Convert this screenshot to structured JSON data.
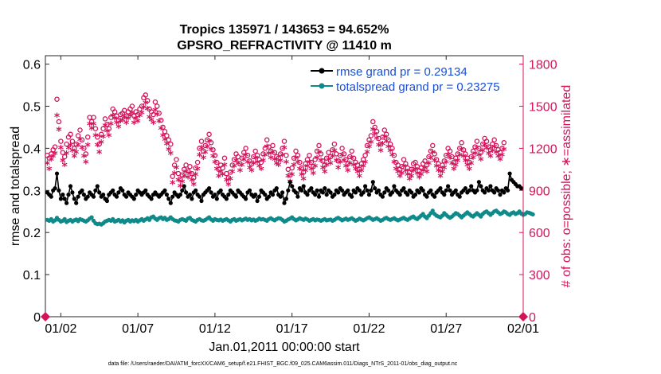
{
  "chart_data": {
    "type": "line",
    "title_line1": "Tropics 135971 / 143653 = 94.652%",
    "title_line2": "GPSRO_REFRACTIVITY @ 11410 m",
    "xlabel": "Jan.01,2011 00:00:00 start",
    "ylabel_left": "rmse and totalspread",
    "ylabel_right": "# of obs: o=possible; ∗=assimilated",
    "footer": "data file: /Users/raeder/DAI/ATM_forcXX/CAM6_setup/f.e21.FHIST_BGC.f09_025.CAM6assim.011/Diags_NTrS_2011-01/obs_diag_output.nc",
    "xlim": [
      0,
      31
    ],
    "ylim_left": [
      0,
      0.62
    ],
    "ylim_right": [
      0,
      1860
    ],
    "x_ticks": [
      {
        "value": 1,
        "label": "01/02"
      },
      {
        "value": 6,
        "label": "01/07"
      },
      {
        "value": 11,
        "label": "01/12"
      },
      {
        "value": 16,
        "label": "01/17"
      },
      {
        "value": 21,
        "label": "01/22"
      },
      {
        "value": 26,
        "label": "01/27"
      },
      {
        "value": 31,
        "label": "02/01"
      }
    ],
    "y_ticks_left": [
      {
        "value": 0,
        "label": "0"
      },
      {
        "value": 0.1,
        "label": "0.1"
      },
      {
        "value": 0.2,
        "label": "0.2"
      },
      {
        "value": 0.3,
        "label": "0.3"
      },
      {
        "value": 0.4,
        "label": "0.4"
      },
      {
        "value": 0.5,
        "label": "0.5"
      },
      {
        "value": 0.6,
        "label": "0.6"
      }
    ],
    "y_ticks_right": [
      {
        "value": 0,
        "label": "0"
      },
      {
        "value": 300,
        "label": "300"
      },
      {
        "value": 600,
        "label": "600"
      },
      {
        "value": 900,
        "label": "900"
      },
      {
        "value": 1200,
        "label": "1200"
      },
      {
        "value": 1500,
        "label": "1500"
      },
      {
        "value": 1800,
        "label": "1800"
      }
    ],
    "legend": {
      "placement": "top-right",
      "entries": [
        {
          "label": "rmse grand pr = 0.29134",
          "color": "#000000"
        },
        {
          "label": "totalspread grand pr = 0.23275",
          "color": "#0f8a8a"
        }
      ]
    },
    "series": [
      {
        "name": "rmse",
        "axis": "left",
        "color": "#000000",
        "x_start": 0.125,
        "x_step": 0.125,
        "values": [
          0.295,
          0.29,
          0.285,
          0.3,
          0.305,
          0.34,
          0.3,
          0.28,
          0.29,
          0.28,
          0.27,
          0.29,
          0.31,
          0.295,
          0.28,
          0.27,
          0.285,
          0.295,
          0.3,
          0.29,
          0.28,
          0.285,
          0.295,
          0.29,
          0.285,
          0.3,
          0.31,
          0.295,
          0.285,
          0.29,
          0.28,
          0.275,
          0.29,
          0.295,
          0.3,
          0.29,
          0.285,
          0.295,
          0.305,
          0.3,
          0.29,
          0.285,
          0.295,
          0.29,
          0.285,
          0.28,
          0.29,
          0.3,
          0.295,
          0.29,
          0.295,
          0.3,
          0.29,
          0.285,
          0.28,
          0.29,
          0.295,
          0.29,
          0.285,
          0.29,
          0.295,
          0.3,
          0.29,
          0.28,
          0.27,
          0.285,
          0.295,
          0.29,
          0.285,
          0.29,
          0.3,
          0.31,
          0.295,
          0.285,
          0.29,
          0.28,
          0.295,
          0.3,
          0.29,
          0.285,
          0.275,
          0.29,
          0.295,
          0.3,
          0.305,
          0.295,
          0.285,
          0.29,
          0.28,
          0.295,
          0.3,
          0.29,
          0.285,
          0.28,
          0.29,
          0.3,
          0.295,
          0.29,
          0.285,
          0.3,
          0.295,
          0.29,
          0.285,
          0.28,
          0.295,
          0.3,
          0.29,
          0.285,
          0.29,
          0.275,
          0.285,
          0.3,
          0.295,
          0.29,
          0.28,
          0.285,
          0.295,
          0.29,
          0.3,
          0.305,
          0.29,
          0.285,
          0.295,
          0.27,
          0.28,
          0.3,
          0.32,
          0.31,
          0.3,
          0.295,
          0.285,
          0.305,
          0.3,
          0.31,
          0.295,
          0.29,
          0.3,
          0.305,
          0.295,
          0.29,
          0.3,
          0.285,
          0.3,
          0.295,
          0.305,
          0.29,
          0.3,
          0.295,
          0.285,
          0.29,
          0.3,
          0.295,
          0.305,
          0.3,
          0.29,
          0.295,
          0.3,
          0.29,
          0.285,
          0.3,
          0.295,
          0.305,
          0.3,
          0.29,
          0.295,
          0.31,
          0.3,
          0.29,
          0.3,
          0.32,
          0.305,
          0.295,
          0.3,
          0.29,
          0.285,
          0.295,
          0.305,
          0.3,
          0.29,
          0.295,
          0.31,
          0.3,
          0.295,
          0.29,
          0.3,
          0.305,
          0.295,
          0.29,
          0.3,
          0.295,
          0.285,
          0.29,
          0.3,
          0.295,
          0.305,
          0.3,
          0.29,
          0.285,
          0.295,
          0.3,
          0.29,
          0.285,
          0.295,
          0.3,
          0.305,
          0.295,
          0.29,
          0.3,
          0.31,
          0.3,
          0.29,
          0.295,
          0.3,
          0.29,
          0.285,
          0.295,
          0.3,
          0.305,
          0.295,
          0.3,
          0.31,
          0.3,
          0.295,
          0.3,
          0.32,
          0.31,
          0.3,
          0.295,
          0.305,
          0.3,
          0.31,
          0.3,
          0.295,
          0.305,
          0.3,
          0.29,
          0.3,
          0.295,
          0.305,
          0.3,
          0.34,
          0.325,
          0.32,
          0.315,
          0.31,
          0.31,
          0.305
        ]
      },
      {
        "name": "totalspread",
        "axis": "left",
        "color": "#0f8a8a",
        "x_start": 0.125,
        "x_step": 0.125,
        "values": [
          0.23,
          0.228,
          0.232,
          0.226,
          0.229,
          0.235,
          0.23,
          0.226,
          0.228,
          0.232,
          0.225,
          0.228,
          0.23,
          0.226,
          0.229,
          0.231,
          0.227,
          0.232,
          0.23,
          0.228,
          0.226,
          0.229,
          0.233,
          0.236,
          0.228,
          0.222,
          0.22,
          0.221,
          0.219,
          0.222,
          0.226,
          0.228,
          0.23,
          0.228,
          0.232,
          0.226,
          0.228,
          0.23,
          0.226,
          0.229,
          0.224,
          0.228,
          0.23,
          0.226,
          0.229,
          0.227,
          0.23,
          0.226,
          0.229,
          0.232,
          0.228,
          0.231,
          0.234,
          0.23,
          0.236,
          0.238,
          0.233,
          0.23,
          0.234,
          0.236,
          0.232,
          0.235,
          0.23,
          0.232,
          0.236,
          0.232,
          0.229,
          0.228,
          0.226,
          0.23,
          0.232,
          0.23,
          0.228,
          0.233,
          0.235,
          0.23,
          0.228,
          0.226,
          0.23,
          0.232,
          0.229,
          0.228,
          0.23,
          0.233,
          0.236,
          0.231,
          0.228,
          0.232,
          0.23,
          0.229,
          0.231,
          0.228,
          0.23,
          0.232,
          0.229,
          0.226,
          0.23,
          0.232,
          0.228,
          0.23,
          0.232,
          0.229,
          0.231,
          0.233,
          0.23,
          0.232,
          0.229,
          0.231,
          0.228,
          0.23,
          0.233,
          0.231,
          0.232,
          0.23,
          0.228,
          0.232,
          0.234,
          0.231,
          0.229,
          0.232,
          0.234,
          0.233,
          0.23,
          0.226,
          0.228,
          0.231,
          0.233,
          0.236,
          0.232,
          0.229,
          0.231,
          0.234,
          0.232,
          0.23,
          0.233,
          0.231,
          0.228,
          0.23,
          0.232,
          0.229,
          0.231,
          0.23,
          0.228,
          0.23,
          0.232,
          0.229,
          0.23,
          0.231,
          0.228,
          0.23,
          0.233,
          0.235,
          0.232,
          0.229,
          0.231,
          0.233,
          0.23,
          0.232,
          0.234,
          0.231,
          0.228,
          0.23,
          0.233,
          0.231,
          0.229,
          0.231,
          0.234,
          0.236,
          0.233,
          0.23,
          0.232,
          0.234,
          0.231,
          0.228,
          0.23,
          0.233,
          0.235,
          0.232,
          0.23,
          0.232,
          0.234,
          0.231,
          0.229,
          0.231,
          0.233,
          0.235,
          0.232,
          0.23,
          0.233,
          0.236,
          0.238,
          0.234,
          0.232,
          0.236,
          0.24,
          0.244,
          0.238,
          0.234,
          0.24,
          0.246,
          0.252,
          0.244,
          0.24,
          0.238,
          0.236,
          0.24,
          0.246,
          0.242,
          0.238,
          0.235,
          0.238,
          0.242,
          0.246,
          0.244,
          0.24,
          0.236,
          0.24,
          0.244,
          0.248,
          0.244,
          0.24,
          0.238,
          0.242,
          0.246,
          0.242,
          0.238,
          0.244,
          0.248,
          0.25,
          0.246,
          0.242,
          0.246,
          0.25,
          0.252,
          0.248,
          0.244,
          0.246,
          0.25,
          0.248,
          0.244,
          0.242,
          0.246,
          0.248,
          0.244,
          0.246,
          0.25,
          0.245,
          0.242,
          0.244,
          0.248,
          0.247,
          0.245,
          0.243
        ]
      },
      {
        "name": "obs possible",
        "axis": "right",
        "marker": "circle",
        "color": "#d4145a",
        "x_start": 0.125,
        "x_step": 0.125,
        "values": [
          1150,
          1130,
          1160,
          1190,
          1210,
          1550,
          1390,
          1250,
          1170,
          1140,
          1230,
          1280,
          1300,
          1250,
          1200,
          1230,
          1290,
          1330,
          1260,
          1200,
          1160,
          1280,
          1420,
          1390,
          1420,
          1340,
          1280,
          1230,
          1300,
          1340,
          1410,
          1370,
          1340,
          1420,
          1480,
          1460,
          1430,
          1400,
          1440,
          1450,
          1470,
          1430,
          1460,
          1480,
          1500,
          1430,
          1460,
          1440,
          1480,
          1500,
          1560,
          1580,
          1540,
          1480,
          1460,
          1440,
          1530,
          1500,
          1450,
          1400,
          1350,
          1320,
          1290,
          1260,
          1230,
          1000,
          1080,
          1120,
          1020,
          980,
          1010,
          1050,
          1080,
          1040,
          1070,
          1020,
          990,
          1060,
          1100,
          1200,
          1250,
          1180,
          1220,
          1260,
          1300,
          1240,
          1190,
          1150,
          1100,
          1050,
          1080,
          1060,
          1130,
          1020,
          990,
          1030,
          1080,
          1120,
          1160,
          1140,
          1090,
          1130,
          1170,
          1200,
          1150,
          1110,
          1090,
          1140,
          1180,
          1150,
          1120,
          1100,
          1160,
          1200,
          1260,
          1210,
          1180,
          1220,
          1170,
          1140,
          1130,
          1160,
          1200,
          1250,
          1150,
          1050,
          1010,
          1060,
          1130,
          1180,
          1150,
          1100,
          1060,
          1030,
          1090,
          1120,
          1150,
          1100,
          1070,
          1120,
          1180,
          1220,
          1160,
          1110,
          1080,
          1130,
          1170,
          1140,
          1190,
          1230,
          1160,
          1110,
          1150,
          1200,
          1160,
          1120,
          1090,
          1140,
          1180,
          1130,
          1100,
          1080,
          1050,
          1090,
          1120,
          1150,
          1220,
          1260,
          1290,
          1390,
          1350,
          1320,
          1270,
          1230,
          1280,
          1330,
          1300,
          1260,
          1230,
          1200,
          1150,
          1100,
          1080,
          1050,
          1070,
          1120,
          1090,
          1060,
          1030,
          1050,
          1090,
          1100,
          1070,
          1040,
          1060,
          1090,
          1110,
          1080,
          1140,
          1180,
          1220,
          1160,
          1120,
          1090,
          1050,
          1080,
          1110,
          1150,
          1200,
          1180,
          1140,
          1100,
          1130,
          1160,
          1200,
          1240,
          1190,
          1160,
          1130,
          1100,
          1140,
          1180,
          1210,
          1250,
          1200,
          1170,
          1230,
          1270,
          1250,
          1210,
          1190,
          1230,
          1260,
          1220,
          1190,
          1170,
          1200,
          1240
        ]
      },
      {
        "name": "obs assimilated",
        "axis": "right",
        "marker": "star",
        "color": "#d4145a",
        "x_start": 0.125,
        "x_step": 0.125,
        "values": [
          1080,
          1040,
          1110,
          1130,
          1150,
          1420,
          1320,
          1190,
          1100,
          1070,
          1150,
          1190,
          1210,
          1170,
          1130,
          1160,
          1210,
          1250,
          1190,
          1130,
          1090,
          1210,
          1360,
          1330,
          1360,
          1280,
          1210,
          1160,
          1230,
          1270,
          1350,
          1310,
          1280,
          1360,
          1420,
          1400,
          1370,
          1340,
          1380,
          1390,
          1410,
          1370,
          1400,
          1420,
          1440,
          1370,
          1400,
          1380,
          1420,
          1440,
          1480,
          1510,
          1470,
          1410,
          1390,
          1370,
          1460,
          1430,
          1380,
          1330,
          1280,
          1250,
          1220,
          1180,
          1150,
          940,
          1010,
          1050,
          960,
          920,
          950,
          990,
          1020,
          980,
          1010,
          960,
          930,
          1000,
          1040,
          1140,
          1190,
          1120,
          1160,
          1200,
          1240,
          1180,
          1130,
          1090,
          1040,
          990,
          1020,
          1000,
          1070,
          960,
          930,
          970,
          1020,
          1060,
          1100,
          1080,
          1030,
          1070,
          1110,
          1140,
          1090,
          1050,
          1030,
          1080,
          1120,
          1090,
          1060,
          1040,
          1100,
          1140,
          1200,
          1150,
          1120,
          1160,
          1110,
          1080,
          1070,
          1100,
          1140,
          1190,
          1090,
          990,
          950,
          1000,
          1070,
          1120,
          1090,
          1040,
          1000,
          970,
          1030,
          1060,
          1090,
          1040,
          1010,
          1060,
          1120,
          1160,
          1100,
          1050,
          1020,
          1070,
          1110,
          1080,
          1130,
          1170,
          1100,
          1050,
          1090,
          1140,
          1100,
          1060,
          1030,
          1080,
          1120,
          1070,
          1040,
          1020,
          990,
          1030,
          1060,
          1090,
          1160,
          1200,
          1230,
          1320,
          1290,
          1260,
          1210,
          1170,
          1220,
          1270,
          1240,
          1200,
          1170,
          1140,
          1090,
          1040,
          1020,
          990,
          1010,
          1060,
          1030,
          1000,
          970,
          990,
          1030,
          1040,
          1010,
          980,
          1000,
          1030,
          1050,
          1020,
          1080,
          1120,
          1160,
          1100,
          1060,
          1030,
          990,
          1020,
          1050,
          1090,
          1140,
          1120,
          1080,
          1040,
          1070,
          1100,
          1140,
          1180,
          1130,
          1100,
          1070,
          1040,
          1080,
          1120,
          1150,
          1190,
          1140,
          1110,
          1170,
          1210,
          1190,
          1150,
          1130,
          1170,
          1200,
          1160,
          1130,
          1110,
          1140,
          1180
        ]
      }
    ]
  }
}
